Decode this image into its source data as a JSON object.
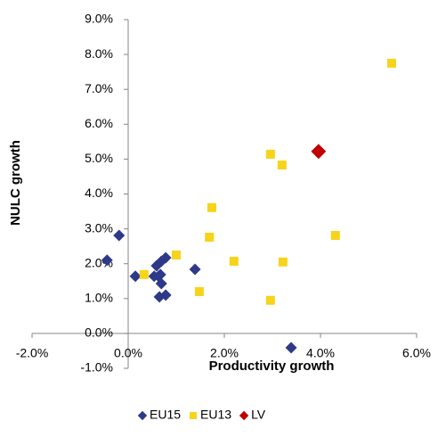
{
  "chart_data": {
    "type": "scatter",
    "x_label": "Productivity growth",
    "y_label": "NULC growth",
    "xlim": [
      -2,
      6
    ],
    "ylim": [
      -1,
      9
    ],
    "xticks": [
      {
        "value": -2,
        "label": "-2.0%"
      },
      {
        "value": 0,
        "label": "0.0%"
      },
      {
        "value": 2,
        "label": "2.0%"
      },
      {
        "value": 4,
        "label": "4.0%"
      },
      {
        "value": 6,
        "label": "6.0%"
      }
    ],
    "yticks": [
      {
        "value": -1,
        "label": "-1.0%"
      },
      {
        "value": 0,
        "label": "0.0%"
      },
      {
        "value": 1,
        "label": "1.0%"
      },
      {
        "value": 2,
        "label": "2.0%"
      },
      {
        "value": 3,
        "label": "3.0%"
      },
      {
        "value": 4,
        "label": "4.0%"
      },
      {
        "value": 5,
        "label": "5.0%"
      },
      {
        "value": 6,
        "label": "6.0%"
      },
      {
        "value": 7,
        "label": "7.0%"
      },
      {
        "value": 8,
        "label": "8.0%"
      },
      {
        "value": 9,
        "label": "9.0%"
      }
    ],
    "grid": false,
    "legend": "bottom",
    "series": [
      {
        "name": "EU15",
        "color": "#2e3a87",
        "marker": "diamond",
        "x": [
          -0.19,
          -0.44,
          0.15,
          0.54,
          0.59,
          0.69,
          0.78,
          0.63,
          0.69,
          0.65,
          0.78,
          1.39,
          3.39,
          0.67
        ],
        "values": [
          2.81,
          2.1,
          1.64,
          1.64,
          1.94,
          2.07,
          2.17,
          1.64,
          1.43,
          1.05,
          1.1,
          1.84,
          -0.41,
          1.69
        ]
      },
      {
        "name": "EU13",
        "color": "#f7d31a",
        "marker": "square",
        "x": [
          0.33,
          1.0,
          1.74,
          1.69,
          1.48,
          2.2,
          2.96,
          2.96,
          3.2,
          3.22,
          4.31,
          5.48
        ],
        "values": [
          1.69,
          2.25,
          3.61,
          2.76,
          1.2,
          2.07,
          0.95,
          5.14,
          4.83,
          2.05,
          2.81,
          7.75
        ]
      },
      {
        "name": "LV",
        "color": "#c00000",
        "marker": "diamond",
        "x": [
          3.96
        ],
        "values": [
          5.22
        ]
      }
    ]
  }
}
